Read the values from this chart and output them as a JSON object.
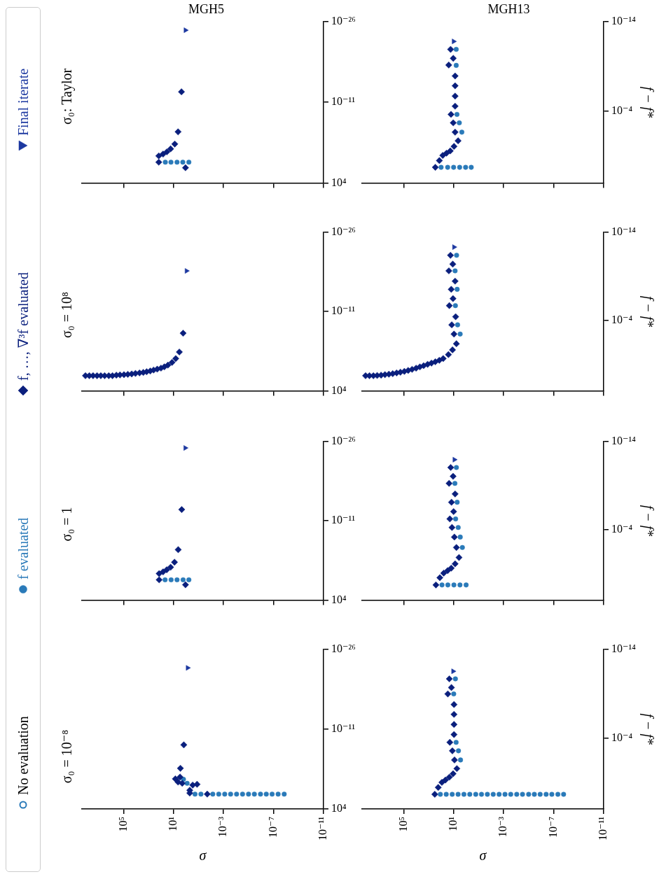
{
  "chart_data": [
    {
      "type": "scatter",
      "title": "σ₀: Taylor",
      "subtitle": "MGH5",
      "log": "xy",
      "legend": "left",
      "annotations": [
        "No evaluation"
      ],
      "tick_labels": "y",
      "xlim": [
        210000000.0,
        1e-11
      ],
      "xticks": [
        {
          "value": 100000.0,
          "label": null
        },
        {
          "value": 10,
          "label": null
        },
        {
          "value": 0.001,
          "label": null
        },
        {
          "value": 1e-07,
          "label": null
        },
        {
          "value": 1e-11,
          "label": null
        }
      ],
      "ylim": [
        10000.0,
        1e-26
      ],
      "yticks": [
        {
          "value": 10000.0,
          "label": "10⁴"
        },
        {
          "value": 1e-11,
          "label": "10⁻¹¹"
        },
        {
          "value": 1e-26,
          "label": "10⁻²⁶"
        }
      ],
      "series": [
        {
          "name": "f evaluated",
          "color": "#2a7ab9",
          "marker": "circle",
          "x": [
            0.59,
            1.8,
            5.2,
            16,
            45
          ],
          "values": [
            1.4,
            1.4,
            1.4,
            1.4,
            1.4
          ]
        },
        {
          "name": "f, …, ∇³f evaluated",
          "color": "#0a1f7d",
          "marker": "diamond",
          "x": [
            150,
            150,
            68,
            34,
            17,
            7.9,
            4.3,
            2.3,
            1.1
          ],
          "values": [
            1.4,
            0.095,
            0.043,
            0.017,
            0.0047,
            0.00059,
            3.2e-06,
            1.2e-13,
            15
          ]
        },
        {
          "name": "Final iterate",
          "color": "#1c38a0",
          "marker": "triangle",
          "x": [
            1.1
          ],
          "values": [
            4.3e-25
          ]
        }
      ]
    },
    {
      "type": "scatter",
      "subtitle": "MGH13",
      "ylabel": "f − f*",
      "log": "xy",
      "tick_labels": "y",
      "xlim": [
        210000000.0,
        1e-11
      ],
      "xticks": [
        {
          "value": 100000.0,
          "label": null
        },
        {
          "value": 10,
          "label": null
        },
        {
          "value": 0.001,
          "label": null
        },
        {
          "value": 1e-07,
          "label": null
        },
        {
          "value": 1e-11,
          "label": null
        }
      ],
      "ylim": [
        10000.0,
        1e-14
      ],
      "yticks": [
        {
          "value": 0.0001,
          "label": "10⁻⁴"
        },
        {
          "value": 1e-14,
          "label": "10⁻¹⁴"
        }
      ],
      "series": [
        {
          "color": "#2a7ab9",
          "marker": "circle",
          "x": [
            100,
            30,
            10,
            3.3,
            1.1,
            0.39,
            2.2,
            3.5,
            5.4,
            6.2,
            6.2
          ],
          "values": [
            182,
            182,
            182,
            182,
            182,
            182,
            0.022,
            0.002,
            0.00023,
            7.9e-10,
            1.3e-11
          ]
        },
        {
          "color": "#0a1f7d",
          "marker": "diamond",
          "x": [
            290,
            138,
            74,
            37,
            18.6,
            9.3,
            4.4,
            7.6,
            10.7,
            16.2,
            7.6,
            7.6,
            7.6,
            7.6,
            24.5,
            10.7,
            17.4
          ],
          "values": [
            182,
            32,
            8.5,
            4.8,
            2.7,
            0.85,
            0.2,
            0.022,
            0.002,
            0.00023,
            2.8e-05,
            2.1e-06,
            1.5e-07,
            1.2e-08,
            7.2e-10,
            1.3e-10,
            1.3e-11
          ]
        },
        {
          "color": "#1c38a0",
          "marker": "triangle",
          "x": [
            10
          ],
          "values": [
            1.7e-12
          ]
        }
      ]
    },
    {
      "type": "scatter",
      "title": "σ₀ = 10⁸",
      "log": "xy",
      "tick_labels": "y",
      "xlim": [
        210000000.0,
        1e-11
      ],
      "xticks": [
        {
          "value": 100000.0,
          "label": null
        },
        {
          "value": 10,
          "label": null
        },
        {
          "value": 0.001,
          "label": null
        },
        {
          "value": 1e-07,
          "label": null
        },
        {
          "value": 1e-11,
          "label": null
        }
      ],
      "ylim": [
        10000.0,
        1e-26
      ],
      "yticks": [
        {
          "value": 10000.0,
          "label": "10⁴"
        },
        {
          "value": 1e-11,
          "label": "10⁻¹¹"
        },
        {
          "value": 1e-26,
          "label": "10⁻²⁶"
        }
      ],
      "series": [
        {
          "color": "#0a1f7d",
          "marker": "diamond",
          "x": [
            110000000.0,
            54000000.0,
            27000000.0,
            13000000.0,
            6500000.0,
            3200000.0,
            1500000.0,
            760000.0,
            370000.0,
            190000.0,
            91000.0,
            45000.0,
            22000.0,
            11000.0,
            5200,
            2600,
            1400,
            720,
            390,
            200,
            100,
            54,
            28,
            13,
            6.6,
            3.4,
            1.7
          ],
          "values": [
            14,
            14,
            14,
            14,
            14,
            14,
            14,
            14,
            11,
            10,
            8.9,
            7.9,
            6.5,
            5.2,
            4.2,
            3.4,
            2.5,
            1.8,
            1.2,
            0.81,
            0.52,
            0.3,
            0.14,
            0.043,
            0.0081,
            0.00047,
            1.3e-07
          ]
        },
        {
          "color": "#1c38a0",
          "marker": "triangle",
          "x": [
            0.91
          ],
          "values": [
            2.2e-19
          ]
        }
      ]
    },
    {
      "type": "scatter",
      "ylabel": "f − f*",
      "log": "xy",
      "tick_labels": "y",
      "xlim": [
        210000000.0,
        1e-11
      ],
      "xticks": [
        {
          "value": 100000.0,
          "label": null
        },
        {
          "value": 10,
          "label": null
        },
        {
          "value": 0.001,
          "label": null
        },
        {
          "value": 1e-07,
          "label": null
        },
        {
          "value": 1e-11,
          "label": null
        }
      ],
      "ylim": [
        10000.0,
        1e-14
      ],
      "yticks": [
        {
          "value": 0.0001,
          "label": "10⁻⁴"
        },
        {
          "value": 1e-14,
          "label": "10⁻¹⁴"
        }
      ],
      "series": [
        {
          "color": "#2a7ab9",
          "marker": "circle",
          "x": [
            3.0,
            4.8,
            7.2,
            5.2,
            7.6,
            5.8
          ],
          "values": [
            0.0037,
            0.00033,
            2.2e-06,
            3.1e-08,
            2.5e-10,
            4.3e-12
          ]
        },
        {
          "color": "#0a1f7d",
          "marker": "diamond",
          "x": [
            110000000.0,
            54000000.0,
            26000000.0,
            13000000.0,
            6300000.0,
            3100000.0,
            1500000.0,
            740000.0,
            360000.0,
            180000.0,
            87000.0,
            43000.0,
            21000.0,
            10000.0,
            5000,
            2500,
            1200,
            590,
            290,
            140,
            68,
            26,
            12.3,
            6.0,
            9.3,
            14.1,
            6.9,
            22,
            11.2,
            15.5,
            7.6,
            24,
            11.7,
            17.8
          ],
          "values": [
            195,
            195,
            195,
            182,
            170,
            148,
            132,
            115,
            93,
            78,
            63,
            49,
            37,
            27,
            19.5,
            14.1,
            10,
            7.2,
            5.1,
            3.5,
            2.2,
            0.78,
            0.23,
            0.046,
            0.0037,
            0.00033,
            4e-05,
            2.2e-06,
            3.5e-07,
            3.1e-08,
            3.7e-09,
            2.5e-10,
            4.3e-11,
            4.3e-12
          ]
        },
        {
          "color": "#1c38a0",
          "marker": "triangle",
          "x": [
            9.3
          ],
          "values": [
            5.1e-13
          ]
        }
      ]
    },
    {
      "type": "scatter",
      "title": "σ₀ = 1",
      "log": "xy",
      "tick_labels": "y",
      "xlim": [
        210000000.0,
        1e-11
      ],
      "xticks": [
        {
          "value": 100000.0,
          "label": null
        },
        {
          "value": 10,
          "label": null
        },
        {
          "value": 0.001,
          "label": null
        },
        {
          "value": 1e-07,
          "label": null
        },
        {
          "value": 1e-11,
          "label": null
        }
      ],
      "ylim": [
        10000.0,
        1e-26
      ],
      "yticks": [
        {
          "value": 10000.0,
          "label": "10⁴"
        },
        {
          "value": 1e-11,
          "label": "10⁻¹¹"
        },
        {
          "value": 1e-26,
          "label": "10⁻²⁶"
        }
      ],
      "series": [
        {
          "color": "#2a7ab9",
          "marker": "circle",
          "x": [
            0.59,
            1.7,
            5.2,
            15.5,
            47
          ],
          "values": [
            1.5,
            1.5,
            1.5,
            1.5,
            1.5
          ]
        },
        {
          "color": "#0a1f7d",
          "marker": "diamond",
          "x": [
            1.1,
            140,
            140,
            68,
            35,
            17,
            8.3,
            4.2,
            2.2
          ],
          "values": [
            13,
            1.5,
            0.1,
            0.047,
            0.019,
            0.0063,
            0.00071,
            3e-06,
            7.9e-14
          ]
        },
        {
          "color": "#1c38a0",
          "marker": "triangle",
          "x": [
            1.15
          ],
          "values": [
            1.8e-25
          ]
        }
      ]
    },
    {
      "type": "scatter",
      "ylabel": "f − f*",
      "log": "xy",
      "tick_labels": "y",
      "xlim": [
        210000000.0,
        1e-11
      ],
      "xticks": [
        {
          "value": 100000.0,
          "label": null
        },
        {
          "value": 10,
          "label": null
        },
        {
          "value": 0.001,
          "label": null
        },
        {
          "value": 1e-07,
          "label": null
        },
        {
          "value": 1e-11,
          "label": null
        }
      ],
      "ylim": [
        10000.0,
        1e-14
      ],
      "yticks": [
        {
          "value": 0.0001,
          "label": "10⁻⁴"
        },
        {
          "value": 1e-14,
          "label": "10⁻¹⁴"
        }
      ],
      "series": [
        {
          "color": "#2a7ab9",
          "marker": "circle",
          "x": [
            85,
            29,
            9.5,
            3.1,
            1.0,
            2.0,
            2.95,
            4.3,
            6.9,
            5.2,
            7.9,
            6.0
          ],
          "values": [
            195,
            195,
            195,
            195,
            195,
            0.011,
            0.00072,
            5.9e-05,
            6.3e-06,
            8.1e-08,
            5.9e-10,
            9.3e-12
          ]
        },
        {
          "color": "#0a1f7d",
          "marker": "diamond",
          "x": [
            260,
            126,
            62,
            30,
            15.5,
            7.6,
            3.7,
            6.0,
            8.7,
            13.5,
            20,
            10,
            14.8,
            7.6,
            23,
            11,
            17
          ],
          "values": [
            195,
            29,
            8.9,
            4.6,
            2.4,
            0.78,
            0.15,
            0.011,
            0.00072,
            5.9e-05,
            6.3e-06,
            9.3e-07,
            8.1e-08,
            9.3e-09,
            5.9e-10,
            9.3e-11,
            9.3e-12
          ]
        },
        {
          "color": "#1c38a0",
          "marker": "triangle",
          "x": [
            8.7
          ],
          "values": [
            1.2e-12
          ]
        }
      ]
    },
    {
      "type": "scatter",
      "title": "σ₀ = 10⁻⁸",
      "xlabel": "σ",
      "log": "xy",
      "xlim": [
        210000000.0,
        1e-11
      ],
      "xticks": [
        {
          "value": 100000.0,
          "label": "10⁵"
        },
        {
          "value": 10,
          "label": "10¹"
        },
        {
          "value": 0.001,
          "label": "10⁻³"
        },
        {
          "value": 1e-07,
          "label": "10⁻⁷"
        },
        {
          "value": 1e-11,
          "label": "10⁻¹¹"
        }
      ],
      "ylim": [
        10000.0,
        1e-26
      ],
      "yticks": [
        {
          "value": 10000.0,
          "label": "10⁴"
        },
        {
          "value": 1e-11,
          "label": "10⁻¹¹"
        },
        {
          "value": 1e-26,
          "label": "10⁻²⁶"
        }
      ],
      "series": [
        {
          "color": "#2a7ab9",
          "marker": "circle",
          "x": [
            0.19,
            0.064,
            0.0072,
            0.0024,
            0.0008,
            0.00027,
            9e-05,
            3e-05,
            1e-05,
            3.4e-06,
            1.1e-06,
            3.8e-07,
            1.3e-07,
            4.3e-08,
            1.4e-08,
            1.6,
            0.81
          ],
          "values": [
            16,
            16,
            16,
            16,
            16,
            16,
            16,
            16,
            16,
            16,
            16,
            16,
            16,
            16,
            16,
            0.026,
            0.15
          ]
        },
        {
          "color": "#0a1f7d",
          "marker": "diamond",
          "x": [
            0.02,
            0.5,
            0.5,
            7.1,
            4.3,
            2.0,
            3.0,
            2.8,
            1.5,
            0.29,
            0.13
          ],
          "values": [
            16,
            10,
            3.0,
            0.022,
            0.087,
            0.15,
            0.01,
            0.00023,
            9.1e-09,
            0.32,
            0.23
          ]
        },
        {
          "color": "#1c38a0",
          "marker": "triangle",
          "x": [
            0.74
          ],
          "values": [
            3.2e-23
          ]
        }
      ]
    },
    {
      "type": "scatter",
      "xlabel": "σ",
      "ylabel": "f − f*",
      "log": "xy",
      "xlim": [
        210000000.0,
        1e-11
      ],
      "xticks": [
        {
          "value": 100000.0,
          "label": "10⁵"
        },
        {
          "value": 10,
          "label": "10¹"
        },
        {
          "value": 0.001,
          "label": "10⁻³"
        },
        {
          "value": 1e-07,
          "label": "10⁻⁷"
        },
        {
          "value": 1e-11,
          "label": "10⁻¹¹"
        }
      ],
      "ylim": [
        10000.0,
        1e-14
      ],
      "yticks": [
        {
          "value": 0.0001,
          "label": "10⁻⁴"
        },
        {
          "value": 1e-14,
          "label": "10⁻¹⁴"
        }
      ],
      "series": [
        {
          "color": "#2a7ab9",
          "marker": "circle",
          "x": [
            115,
            39,
            13,
            4.4,
            1.5,
            0.51,
            0.17,
            0.059,
            0.02,
            0.0068,
            0.0023,
            0.00078,
            0.00027,
            9e-05,
            3.1e-05,
            1e-05,
            3.5e-06,
            1.2e-06,
            4e-07,
            1.4e-07,
            4.6e-08,
            1.6e-08,
            2.8,
            4.1,
            6.3,
            9.8,
            7.2
          ],
          "values": [
            220,
            220,
            220,
            220,
            220,
            220,
            220,
            220,
            220,
            220,
            220,
            220,
            220,
            220,
            220,
            220,
            220,
            220,
            220,
            220,
            220,
            220,
            0.03,
            0.0028,
            0.00031,
            1.1e-09,
            2.2e-11
          ]
        },
        {
          "color": "#0a1f7d",
          "marker": "diamond",
          "x": [
            320,
            170,
            87,
            45,
            22,
            11,
            5.5,
            8.5,
            12.6,
            20,
            9.3,
            9.3,
            9.3,
            9.3,
            29,
            15,
            22
          ],
          "values": [
            220,
            37,
            10,
            5.4,
            2.6,
            1.07,
            0.28,
            0.03,
            0.0028,
            0.00031,
            4.1e-05,
            3e-06,
            2.2e-07,
            1.7e-08,
            1.1e-09,
            2.1e-10,
            2.2e-11
          ]
        },
        {
          "color": "#1c38a0",
          "marker": "triangle",
          "x": [
            11
          ],
          "values": [
            3.1e-12
          ]
        }
      ]
    }
  ]
}
